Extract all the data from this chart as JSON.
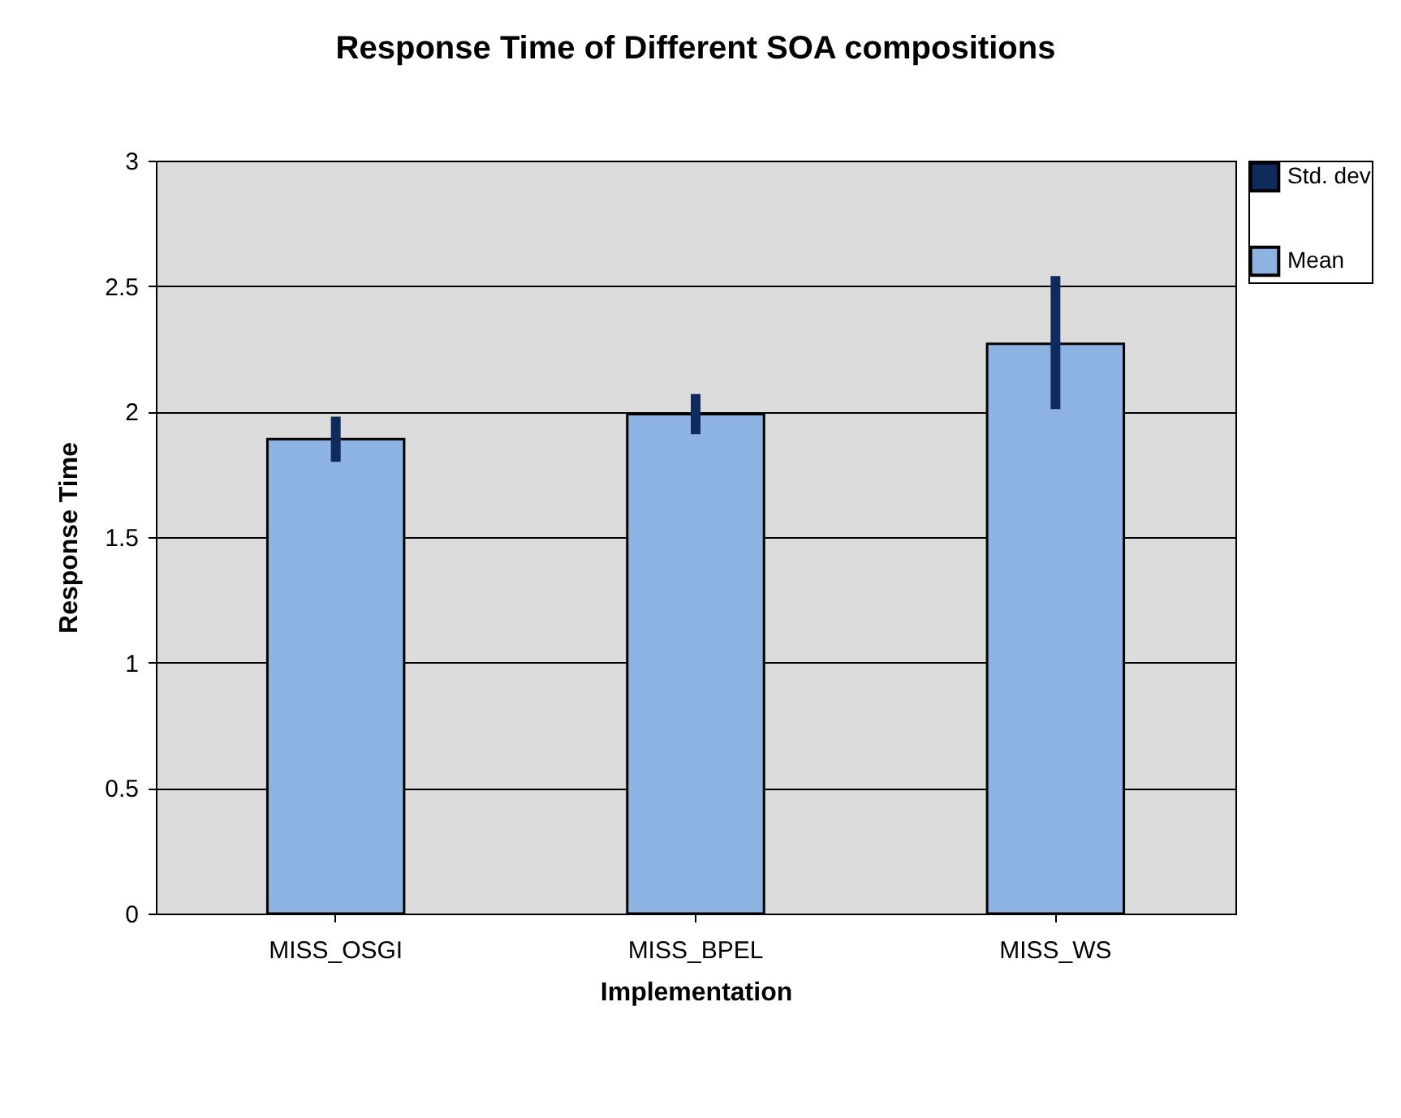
{
  "chart_data": {
    "type": "bar",
    "title": "Response Time of Different SOA compositions",
    "xlabel": "Implementation",
    "ylabel": "Response Time",
    "categories": [
      "MISS_OSGI",
      "MISS_BPEL",
      "MISS_WS"
    ],
    "series": [
      {
        "name": "Std. dev",
        "color": "#0f2a5c",
        "base": [
          1.8,
          1.91,
          2.01
        ],
        "values": [
          0.18,
          0.16,
          0.53
        ]
      },
      {
        "name": "Mean",
        "color": "#8db3e2",
        "values": [
          1.89,
          1.99,
          2.27
        ]
      }
    ],
    "ylim": [
      0,
      3
    ],
    "yticks": [
      0,
      0.5,
      1,
      1.5,
      2,
      2.5,
      3
    ],
    "grid": "y",
    "legend": "right"
  }
}
